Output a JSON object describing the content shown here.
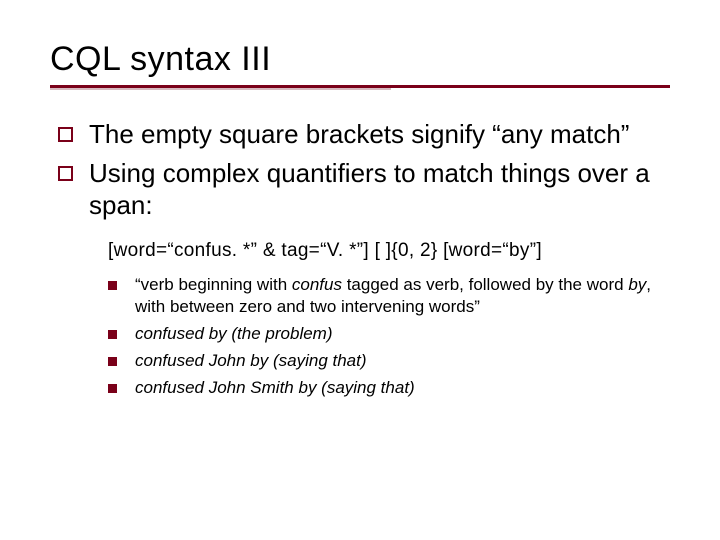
{
  "title": "CQL syntax III",
  "colors": {
    "accent_dark": "#7a0019",
    "accent_light": "#d6b9be",
    "text": "#000000",
    "background": "#ffffff"
  },
  "typography": {
    "title_fontsize": 34,
    "body_fontsize": 26,
    "code_fontsize": 19,
    "sub_fontsize": 17,
    "font_family": "Verdana"
  },
  "bullets": [
    "The empty square brackets signify “any match”",
    "Using complex quantifiers to match things over a span:"
  ],
  "code_example": "[word=“confus. *” & tag=“V. *”] [ ]{0, 2} [word=“by”]",
  "sub_items": {
    "desc_pre": "“verb beginning with ",
    "desc_w1": "confus",
    "desc_mid": " tagged as verb, followed by the word ",
    "desc_w2": "by",
    "desc_post": ", with between zero and two intervening words”",
    "ex1": "confused by (the problem)",
    "ex2": "confused John by (saying that)",
    "ex3": "confused John Smith by (saying that)"
  }
}
